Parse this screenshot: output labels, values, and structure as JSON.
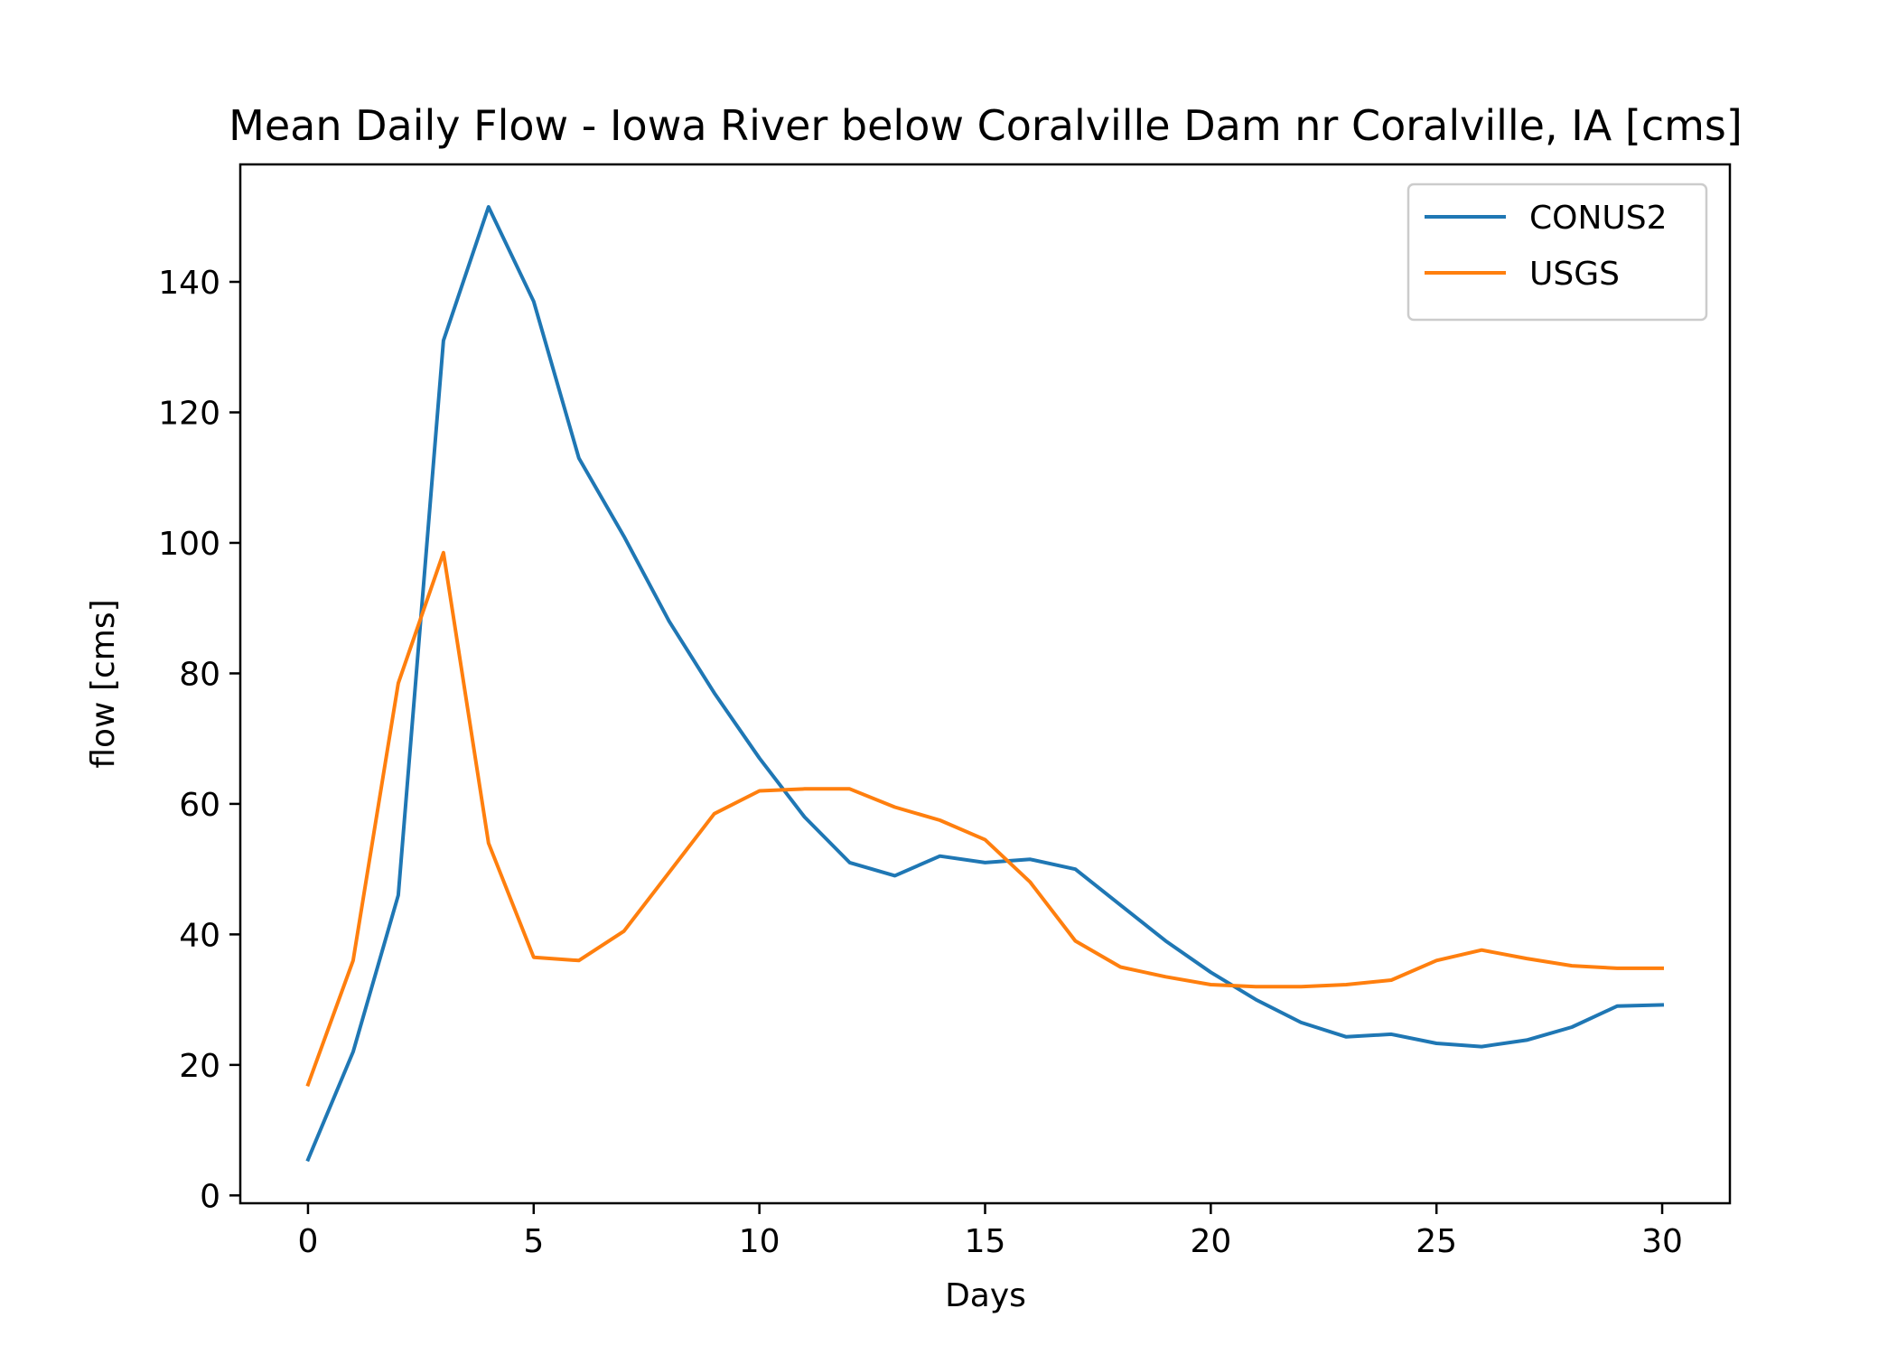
{
  "chart_data": {
    "type": "line",
    "title": "Mean Daily Flow - Iowa River below Coralville Dam nr Coralville, IA [cms]",
    "xlabel": "Days",
    "ylabel": "flow [cms]",
    "xlim": [
      -1.5,
      31.5
    ],
    "ylim": [
      -1.2,
      158
    ],
    "xticks": [
      0,
      5,
      10,
      15,
      20,
      25,
      30
    ],
    "yticks": [
      0,
      20,
      40,
      60,
      80,
      100,
      120,
      140
    ],
    "grid": false,
    "legend_position": "top-right",
    "x": [
      0,
      1,
      2,
      3,
      4,
      5,
      6,
      7,
      8,
      9,
      10,
      11,
      12,
      13,
      14,
      15,
      16,
      17,
      18,
      19,
      20,
      21,
      22,
      23,
      24,
      25,
      26,
      27,
      28,
      29,
      30
    ],
    "series": [
      {
        "name": "CONUS2",
        "color": "#1f77b4",
        "values": [
          5.5,
          22,
          46,
          131,
          151.5,
          137,
          113,
          101,
          88,
          77,
          67,
          58,
          51,
          49,
          52,
          51,
          51.5,
          50,
          44.5,
          39,
          34.2,
          30,
          26.5,
          24.3,
          24.7,
          23.3,
          22.8,
          23.8,
          25.8,
          29,
          29.2
        ]
      },
      {
        "name": "USGS",
        "color": "#ff7f0e",
        "values": [
          17,
          36,
          78.5,
          98.5,
          54,
          36.5,
          36,
          40.5,
          49.5,
          58.5,
          62,
          62.3,
          62.3,
          59.5,
          57.5,
          54.5,
          48,
          39,
          35,
          33.5,
          32.3,
          32,
          32,
          32.3,
          33,
          36,
          37.6,
          36.3,
          35.2,
          34.8,
          34.8
        ]
      }
    ]
  }
}
